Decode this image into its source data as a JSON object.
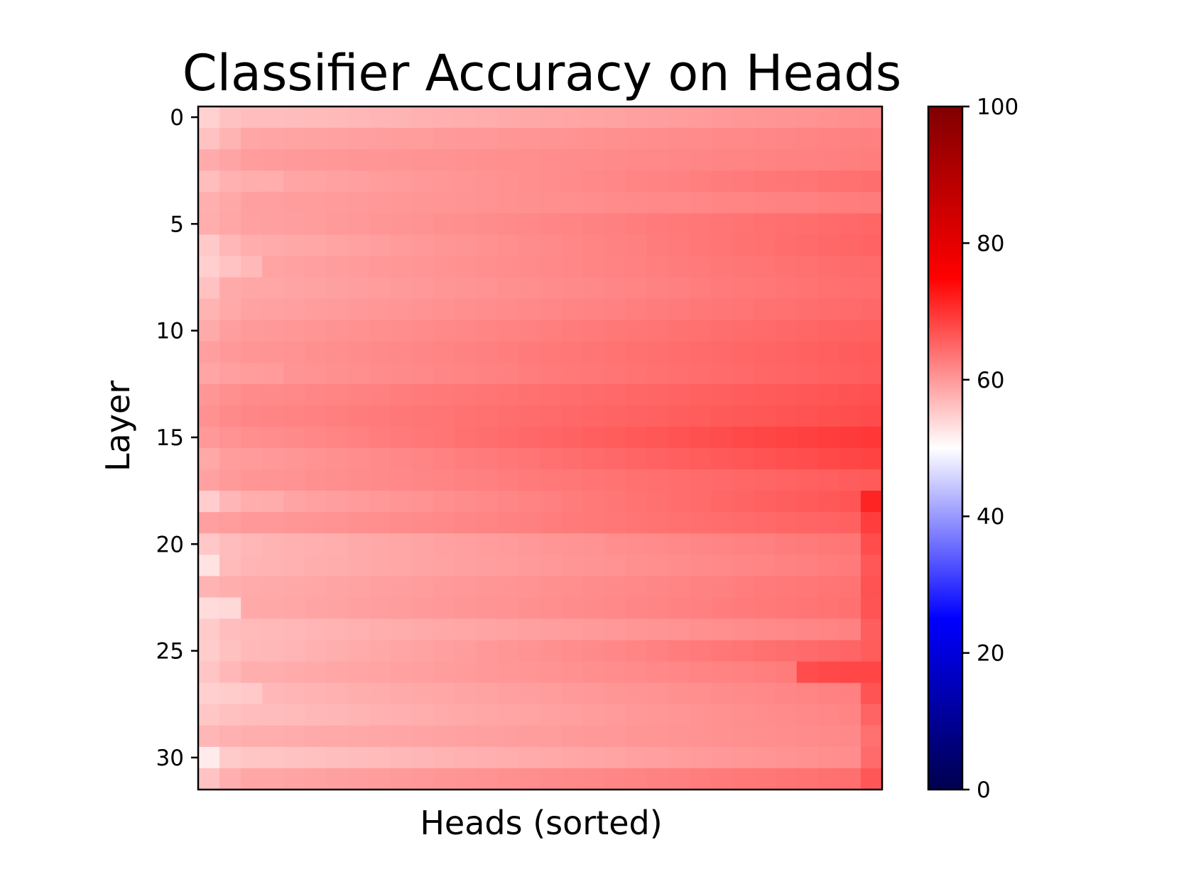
{
  "chart_data": {
    "type": "heatmap",
    "title": "Classifier Accuracy on Heads",
    "xlabel": "Heads (sorted)",
    "ylabel": "Layer",
    "rows": 32,
    "cols": 32,
    "y_ticks": [
      0,
      5,
      10,
      15,
      20,
      25,
      30
    ],
    "x_ticks": [],
    "colorbar": {
      "colormap": "seismic",
      "vmin": 0,
      "vmax": 100,
      "ticks": [
        0,
        20,
        40,
        60,
        80,
        100
      ],
      "tick_labels": [
        "0",
        "20",
        "40",
        "60",
        "80",
        "100"
      ]
    },
    "values": [
      [
        54.5,
        56.0,
        56.5,
        56.5,
        56.6,
        56.8,
        56.9,
        57.1,
        57.3,
        57.4,
        57.6,
        57.8,
        58.0,
        58.1,
        58.3,
        58.5,
        58.6,
        58.8,
        59.0,
        59.1,
        59.3,
        59.5,
        59.7,
        59.8,
        60.0,
        60.2,
        60.3,
        60.5,
        60.7,
        60.8,
        61.0,
        61.2
      ],
      [
        56.0,
        57.4,
        58.7,
        58.8,
        59.0,
        59.1,
        59.2,
        59.4,
        59.5,
        59.6,
        59.7,
        59.9,
        60.0,
        60.1,
        60.3,
        60.4,
        60.5,
        60.6,
        60.8,
        60.9,
        61.0,
        61.2,
        61.3,
        61.4,
        61.6,
        61.7,
        61.8,
        61.9,
        62.1,
        62.2,
        62.3,
        62.5
      ],
      [
        58.2,
        58.9,
        59.6,
        59.8,
        59.9,
        60.1,
        60.2,
        60.3,
        60.4,
        60.5,
        60.6,
        60.7,
        60.8,
        60.9,
        61.0,
        61.1,
        61.2,
        61.3,
        61.4,
        61.5,
        61.6,
        61.7,
        61.8,
        61.9,
        62.0,
        62.1,
        62.2,
        62.3,
        62.4,
        62.5,
        62.6,
        62.7
      ],
      [
        56.5,
        57.7,
        57.9,
        58.0,
        58.8,
        59.0,
        59.2,
        59.4,
        59.6,
        59.8,
        60.0,
        60.2,
        60.4,
        60.6,
        60.8,
        61.0,
        61.2,
        61.4,
        61.6,
        61.8,
        62.0,
        62.2,
        62.4,
        62.6,
        62.8,
        63.0,
        63.2,
        63.4,
        63.6,
        63.8,
        64.0,
        64.2
      ],
      [
        57.8,
        58.5,
        59.3,
        59.4,
        59.6,
        59.7,
        59.8,
        59.9,
        60.0,
        60.2,
        60.3,
        60.4,
        60.5,
        60.6,
        60.8,
        60.9,
        61.0,
        61.1,
        61.2,
        61.4,
        61.5,
        61.6,
        61.7,
        61.8,
        62.0,
        62.1,
        62.2,
        62.3,
        62.4,
        62.6,
        62.7,
        62.8
      ],
      [
        58.0,
        58.6,
        59.2,
        59.3,
        59.5,
        59.7,
        59.9,
        60.1,
        60.3,
        60.5,
        60.7,
        60.9,
        61.1,
        61.3,
        61.5,
        61.7,
        61.9,
        62.1,
        62.3,
        62.5,
        62.7,
        62.9,
        63.1,
        63.3,
        63.5,
        63.7,
        63.9,
        64.1,
        64.3,
        64.5,
        64.7,
        64.9
      ],
      [
        55.3,
        57.1,
        58.0,
        58.2,
        58.5,
        58.7,
        59.0,
        59.2,
        59.5,
        59.8,
        60.0,
        60.3,
        60.5,
        60.8,
        61.0,
        61.3,
        61.5,
        61.8,
        62.0,
        62.3,
        62.5,
        62.8,
        63.0,
        63.3,
        63.5,
        63.8,
        64.0,
        64.3,
        64.5,
        64.8,
        65.0,
        65.3
      ],
      [
        54.8,
        55.9,
        56.9,
        59.0,
        59.2,
        59.4,
        59.6,
        59.8,
        60.0,
        60.2,
        60.4,
        60.6,
        60.8,
        61.0,
        61.2,
        61.4,
        61.6,
        61.8,
        62.0,
        62.2,
        62.4,
        62.6,
        62.8,
        63.0,
        63.2,
        63.4,
        63.6,
        63.8,
        64.0,
        64.2,
        64.4,
        64.6
      ],
      [
        56.1,
        58.3,
        58.6,
        58.7,
        58.9,
        59.1,
        59.3,
        59.5,
        59.7,
        59.9,
        60.1,
        60.3,
        60.5,
        60.7,
        60.9,
        61.1,
        61.3,
        61.5,
        61.7,
        61.9,
        62.1,
        62.3,
        62.5,
        62.7,
        62.9,
        63.1,
        63.3,
        63.5,
        63.7,
        63.9,
        64.1,
        64.3
      ],
      [
        57.5,
        58.4,
        59.1,
        59.2,
        59.4,
        59.6,
        59.8,
        60.0,
        60.2,
        60.4,
        60.6,
        60.8,
        61.0,
        61.2,
        61.4,
        61.6,
        61.8,
        62.0,
        62.2,
        62.4,
        62.6,
        62.8,
        63.0,
        63.2,
        63.4,
        63.6,
        63.8,
        64.0,
        64.2,
        64.4,
        64.6,
        64.8
      ],
      [
        58.3,
        59.5,
        59.9,
        60.0,
        60.2,
        60.4,
        60.6,
        60.8,
        61.0,
        61.2,
        61.4,
        61.6,
        61.8,
        62.0,
        62.2,
        62.4,
        62.6,
        62.8,
        63.0,
        63.2,
        63.4,
        63.6,
        63.8,
        64.0,
        64.2,
        64.4,
        64.6,
        64.8,
        65.0,
        65.2,
        65.4,
        65.6
      ],
      [
        59.5,
        60.0,
        60.4,
        60.5,
        60.7,
        60.9,
        61.1,
        61.3,
        61.5,
        61.7,
        61.9,
        62.1,
        62.3,
        62.5,
        62.7,
        62.9,
        63.1,
        63.3,
        63.5,
        63.7,
        63.9,
        64.1,
        64.3,
        64.5,
        64.7,
        64.9,
        65.1,
        65.3,
        65.5,
        65.7,
        65.9,
        66.1
      ],
      [
        58.8,
        59.4,
        59.7,
        59.8,
        60.5,
        60.7,
        60.9,
        61.1,
        61.3,
        61.5,
        61.7,
        61.9,
        62.1,
        62.3,
        62.5,
        62.7,
        62.9,
        63.1,
        63.3,
        63.5,
        63.7,
        63.9,
        64.1,
        64.3,
        64.5,
        64.7,
        64.9,
        65.1,
        65.3,
        65.5,
        65.7,
        65.9
      ],
      [
        60.3,
        60.9,
        61.4,
        61.5,
        61.7,
        61.9,
        62.1,
        62.3,
        62.5,
        62.7,
        62.9,
        63.1,
        63.3,
        63.5,
        63.7,
        63.9,
        64.1,
        64.3,
        64.5,
        64.7,
        64.9,
        65.1,
        65.3,
        65.5,
        65.7,
        65.9,
        66.1,
        66.3,
        66.5,
        66.7,
        66.9,
        67.1
      ],
      [
        60.8,
        61.5,
        61.9,
        62.0,
        62.2,
        62.4,
        62.6,
        62.8,
        63.0,
        63.2,
        63.4,
        63.6,
        63.8,
        64.0,
        64.2,
        64.4,
        64.6,
        64.8,
        65.0,
        65.2,
        65.4,
        65.6,
        65.8,
        66.0,
        66.2,
        66.4,
        66.6,
        66.8,
        67.0,
        67.2,
        67.4,
        67.6
      ],
      [
        60.0,
        60.6,
        61.1,
        61.2,
        61.5,
        61.8,
        62.1,
        62.4,
        62.7,
        63.0,
        63.3,
        63.6,
        63.9,
        64.2,
        64.5,
        64.8,
        65.1,
        65.4,
        65.7,
        66.0,
        66.3,
        66.6,
        66.9,
        67.2,
        67.5,
        67.8,
        68.1,
        68.4,
        68.7,
        69.0,
        69.3,
        69.6
      ],
      [
        58.5,
        59.6,
        59.8,
        60.0,
        60.3,
        60.6,
        60.9,
        61.2,
        61.5,
        61.8,
        62.1,
        62.4,
        62.7,
        63.0,
        63.3,
        63.6,
        63.9,
        64.2,
        64.5,
        64.8,
        65.1,
        65.4,
        65.7,
        66.0,
        66.3,
        66.6,
        66.9,
        67.2,
        67.5,
        67.8,
        68.1,
        68.4
      ],
      [
        59.2,
        59.9,
        60.4,
        60.5,
        60.7,
        60.9,
        61.1,
        61.3,
        61.5,
        61.7,
        61.9,
        62.1,
        62.3,
        62.5,
        62.7,
        62.9,
        63.1,
        63.3,
        63.5,
        63.7,
        63.9,
        64.1,
        64.3,
        64.5,
        64.7,
        64.9,
        65.1,
        65.3,
        65.5,
        65.7,
        65.9,
        66.1
      ],
      [
        54.9,
        57.2,
        58.0,
        58.1,
        58.9,
        59.2,
        59.5,
        59.8,
        60.1,
        60.4,
        60.7,
        61.0,
        61.3,
        61.6,
        61.9,
        62.2,
        62.5,
        62.8,
        63.1,
        63.4,
        63.7,
        64.0,
        64.3,
        64.6,
        64.9,
        65.2,
        65.5,
        65.8,
        66.1,
        66.4,
        66.7,
        71.5
      ],
      [
        59.4,
        59.7,
        60.0,
        60.1,
        60.3,
        60.5,
        60.7,
        60.9,
        61.1,
        61.3,
        61.5,
        61.7,
        61.9,
        62.1,
        62.3,
        62.5,
        62.7,
        62.9,
        63.1,
        63.3,
        63.5,
        63.7,
        63.9,
        64.1,
        64.3,
        64.5,
        64.7,
        64.9,
        65.1,
        65.3,
        65.5,
        69.0
      ],
      [
        55.5,
        56.6,
        57.1,
        57.4,
        57.6,
        57.8,
        58.0,
        58.3,
        58.5,
        58.7,
        58.9,
        59.2,
        59.4,
        59.6,
        59.8,
        60.1,
        60.3,
        60.5,
        60.7,
        61.0,
        61.2,
        61.4,
        61.6,
        61.9,
        62.1,
        62.3,
        62.5,
        62.8,
        63.0,
        63.2,
        63.4,
        67.5
      ],
      [
        52.8,
        56.8,
        57.3,
        57.5,
        57.7,
        57.9,
        58.1,
        58.3,
        58.5,
        58.7,
        58.9,
        59.1,
        59.3,
        59.5,
        59.7,
        59.9,
        60.1,
        60.3,
        60.5,
        60.7,
        60.9,
        61.1,
        61.3,
        61.5,
        61.7,
        61.9,
        62.1,
        62.3,
        62.5,
        62.7,
        62.9,
        66.5
      ],
      [
        57.5,
        57.9,
        58.2,
        58.3,
        58.5,
        58.7,
        58.9,
        59.1,
        59.3,
        59.5,
        59.7,
        59.9,
        60.1,
        60.3,
        60.5,
        60.7,
        60.9,
        61.1,
        61.3,
        61.5,
        61.7,
        61.9,
        62.1,
        62.3,
        62.5,
        62.7,
        62.9,
        63.1,
        63.3,
        63.5,
        63.7,
        67.0
      ],
      [
        53.5,
        53.8,
        58.4,
        58.5,
        58.7,
        58.9,
        59.1,
        59.3,
        59.5,
        59.7,
        59.9,
        60.1,
        60.3,
        60.5,
        60.7,
        60.9,
        61.1,
        61.3,
        61.5,
        61.7,
        61.9,
        62.1,
        62.3,
        62.5,
        62.7,
        62.9,
        63.1,
        63.3,
        63.5,
        63.7,
        63.9,
        66.8
      ],
      [
        55.2,
        56.5,
        56.8,
        56.9,
        57.1,
        57.3,
        57.5,
        57.7,
        57.9,
        58.1,
        58.3,
        58.5,
        58.7,
        58.9,
        59.1,
        59.3,
        59.5,
        59.7,
        59.9,
        60.1,
        60.3,
        60.5,
        60.7,
        60.9,
        61.1,
        61.3,
        61.5,
        61.7,
        61.9,
        62.1,
        62.3,
        65.8
      ],
      [
        55.0,
        56.2,
        56.9,
        57.0,
        57.3,
        57.6,
        57.9,
        58.2,
        58.5,
        58.8,
        59.1,
        59.4,
        59.7,
        60.0,
        60.3,
        60.6,
        60.9,
        61.2,
        61.5,
        61.8,
        62.1,
        62.4,
        62.7,
        63.0,
        63.3,
        63.6,
        63.9,
        64.2,
        64.5,
        64.8,
        65.1,
        66.0
      ],
      [
        55.8,
        57.1,
        57.9,
        58.0,
        58.2,
        58.4,
        58.6,
        58.8,
        59.0,
        59.2,
        59.4,
        59.6,
        59.8,
        60.0,
        60.2,
        60.4,
        60.6,
        60.8,
        61.0,
        61.2,
        61.4,
        61.6,
        61.8,
        62.0,
        62.2,
        62.4,
        62.6,
        62.8,
        67.5,
        67.8,
        68.0,
        68.2
      ],
      [
        54.7,
        55.0,
        55.3,
        57.1,
        57.3,
        57.5,
        57.7,
        57.9,
        58.1,
        58.3,
        58.5,
        58.7,
        58.9,
        59.1,
        59.3,
        59.5,
        59.7,
        59.9,
        60.1,
        60.3,
        60.5,
        60.7,
        60.9,
        61.1,
        61.3,
        61.5,
        61.7,
        61.9,
        62.1,
        62.3,
        62.5,
        66.8
      ],
      [
        55.6,
        56.2,
        56.5,
        56.6,
        56.8,
        57.0,
        57.2,
        57.4,
        57.6,
        57.8,
        58.0,
        58.2,
        58.4,
        58.6,
        58.8,
        59.0,
        59.2,
        59.4,
        59.6,
        59.8,
        60.0,
        60.2,
        60.4,
        60.6,
        60.8,
        61.0,
        61.2,
        61.4,
        61.6,
        61.8,
        62.0,
        65.2
      ],
      [
        57.2,
        57.6,
        57.9,
        58.0,
        58.1,
        58.3,
        58.4,
        58.5,
        58.7,
        58.8,
        58.9,
        59.1,
        59.2,
        59.3,
        59.5,
        59.6,
        59.7,
        59.9,
        60.0,
        60.1,
        60.3,
        60.4,
        60.5,
        60.7,
        60.8,
        60.9,
        61.1,
        61.2,
        61.3,
        61.5,
        61.6,
        64.0
      ],
      [
        52.0,
        55.2,
        55.6,
        55.8,
        56.0,
        56.2,
        56.4,
        56.6,
        56.8,
        57.0,
        57.2,
        57.4,
        57.6,
        57.8,
        58.0,
        58.2,
        58.4,
        58.6,
        58.8,
        59.0,
        59.2,
        59.4,
        59.6,
        59.8,
        60.0,
        60.2,
        60.4,
        60.6,
        60.8,
        61.0,
        61.2,
        64.5
      ],
      [
        55.9,
        57.8,
        58.6,
        58.7,
        58.9,
        59.1,
        59.3,
        59.5,
        59.7,
        59.9,
        60.1,
        60.3,
        60.5,
        60.7,
        60.9,
        61.1,
        61.3,
        61.5,
        61.7,
        61.9,
        62.1,
        62.3,
        62.5,
        62.7,
        62.9,
        63.1,
        63.3,
        63.5,
        63.7,
        63.9,
        64.1,
        66.5
      ]
    ]
  }
}
